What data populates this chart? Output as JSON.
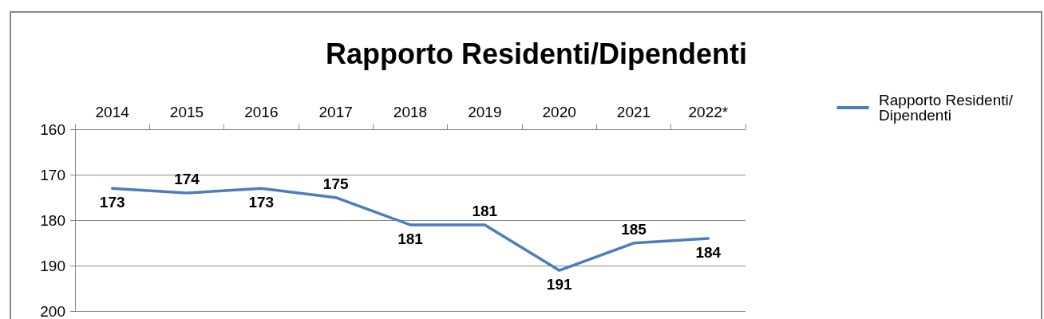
{
  "chart_data": {
    "type": "line",
    "title": "Rapporto Residenti/Dipendenti",
    "categories": [
      "2014",
      "2015",
      "2016",
      "2017",
      "2018",
      "2019",
      "2020",
      "2021",
      "2022*"
    ],
    "series": [
      {
        "name": "Rapporto Residenti/Dipendenti",
        "color": "#4a7ebb",
        "values": [
          173,
          174,
          173,
          175,
          181,
          181,
          191,
          185,
          184
        ]
      }
    ],
    "ylim": [
      200,
      160
    ],
    "yticks": [
      160,
      170,
      180,
      190,
      200
    ],
    "grid": "y",
    "legend": "right",
    "marker": "none",
    "line_style": "solid",
    "data_labels": true
  }
}
